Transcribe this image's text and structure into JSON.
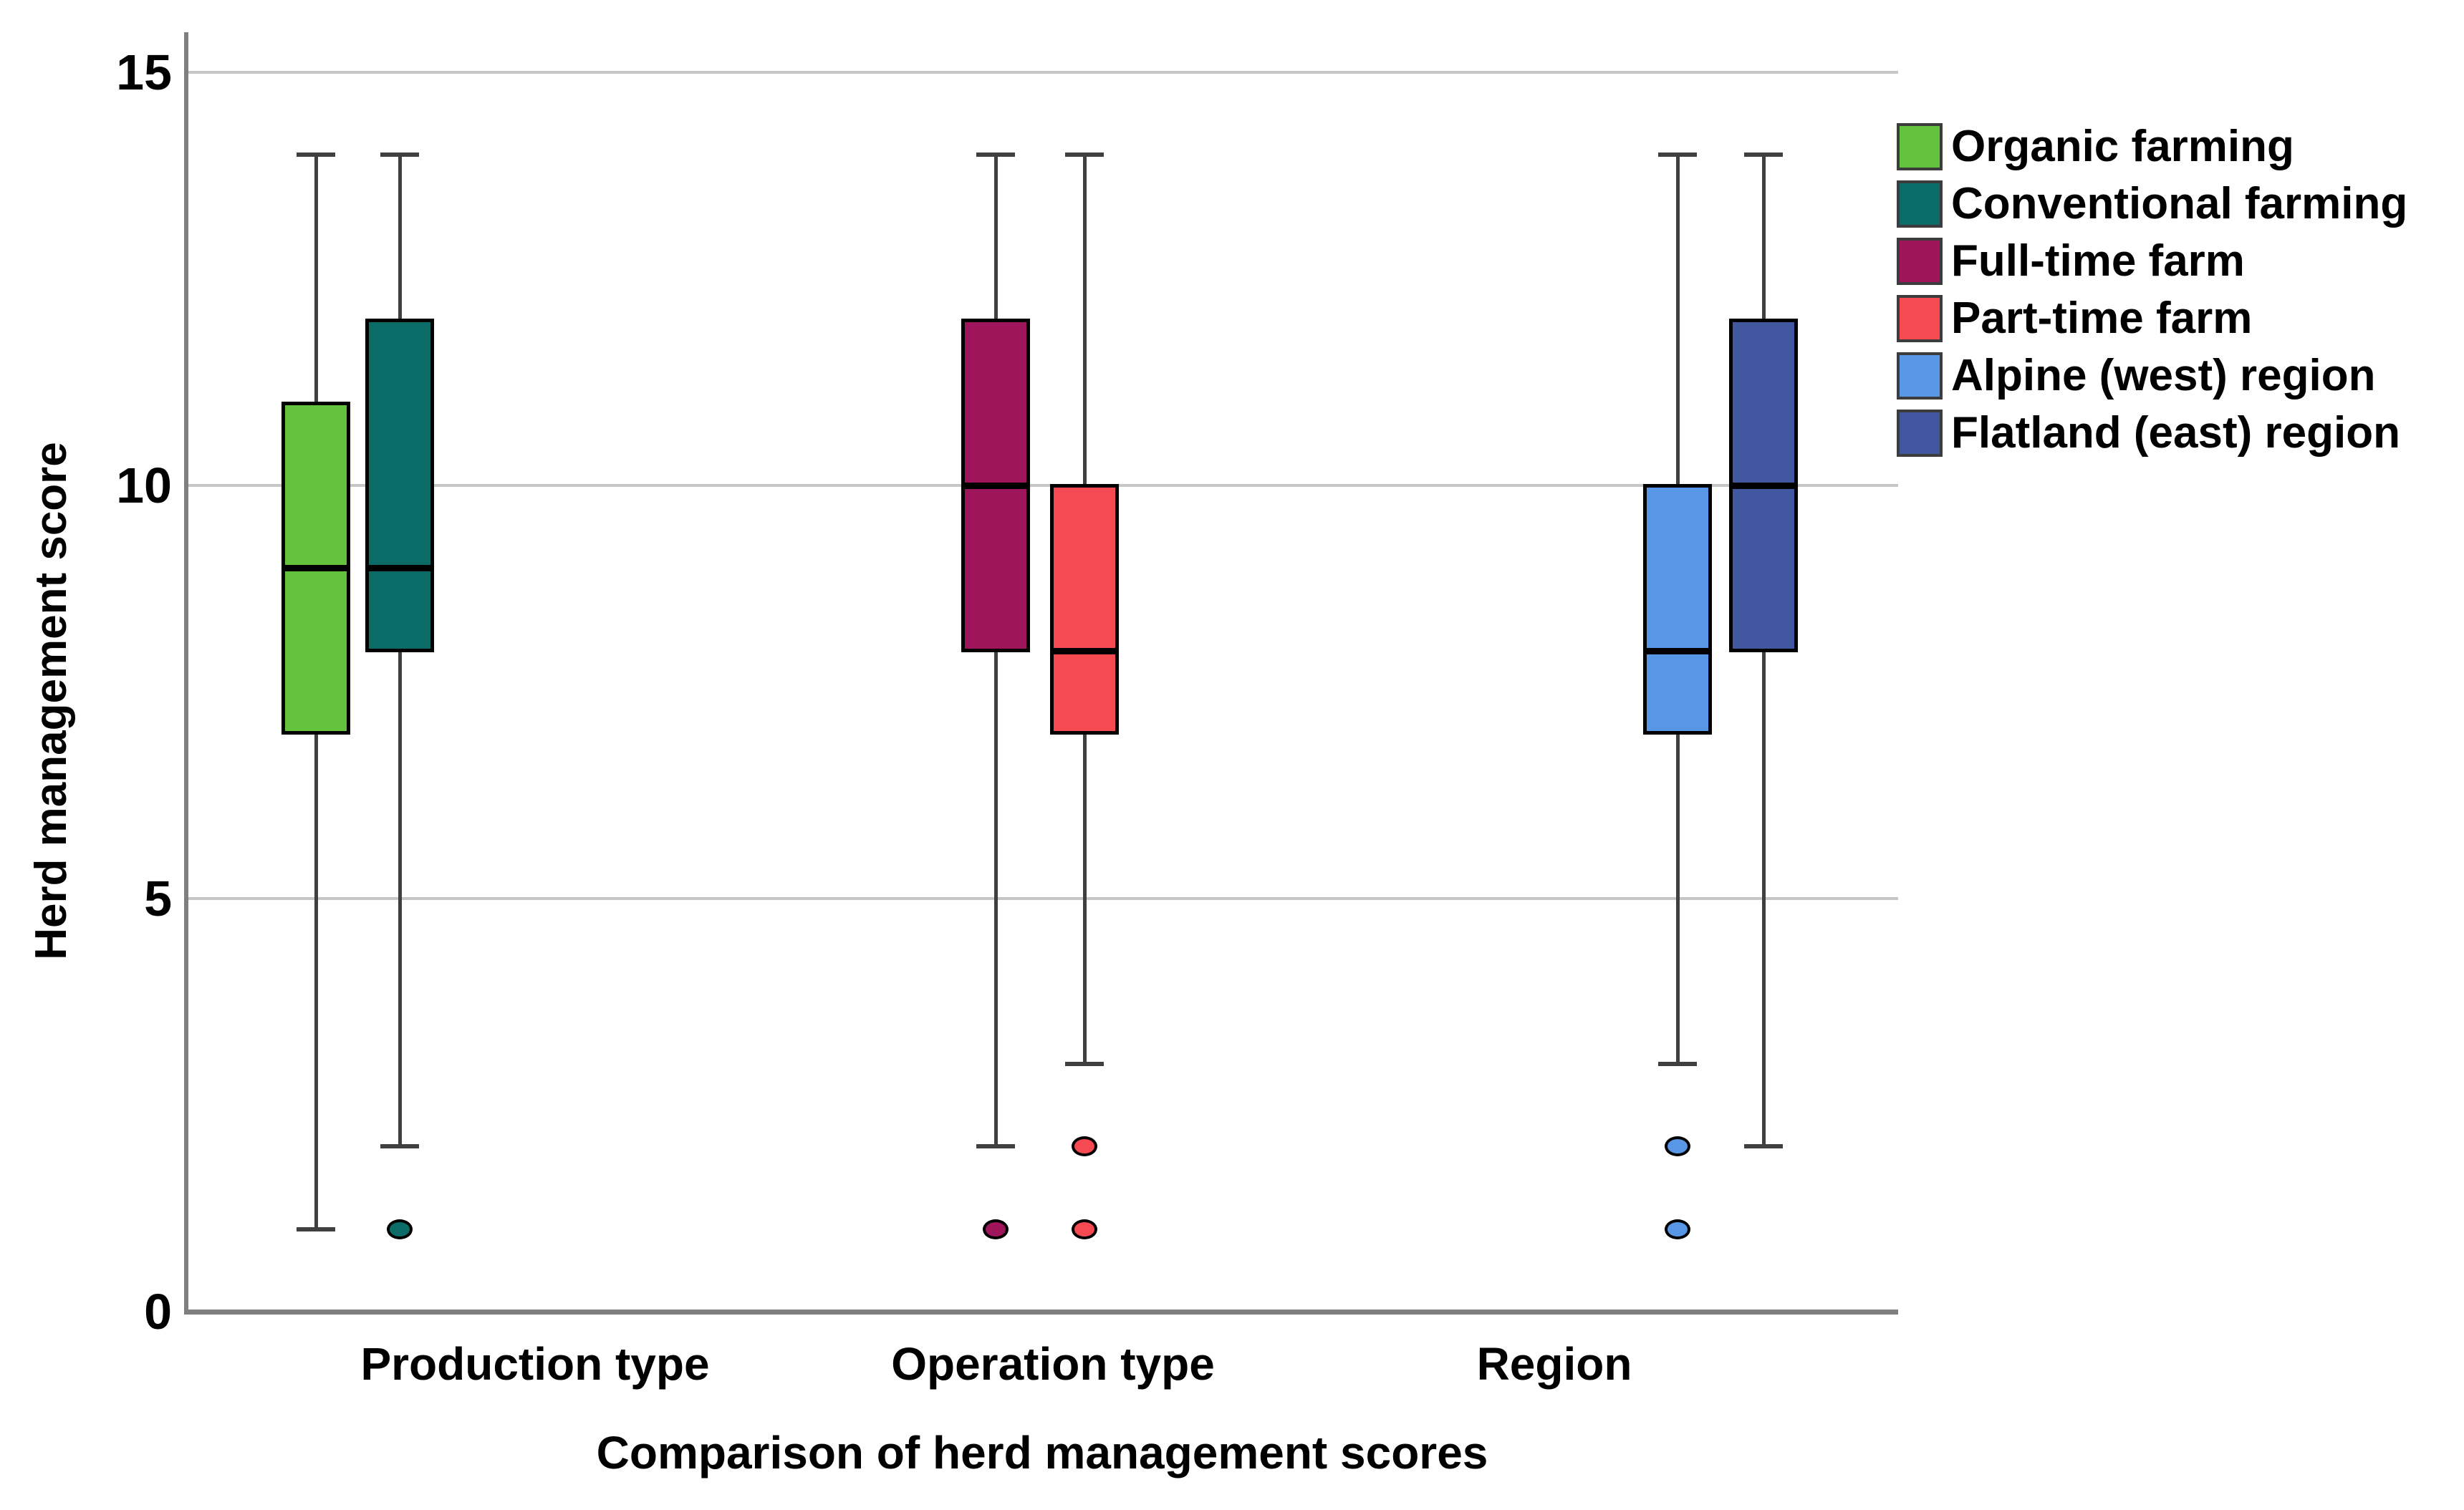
{
  "chart_data": {
    "type": "boxplot",
    "title": "Comparison of herd management scores",
    "xlabel": "Comparison of herd management scores",
    "ylabel": "Herd management score",
    "ylim": [
      0,
      15.5
    ],
    "yticks": [
      0,
      5,
      10,
      15
    ],
    "grid": true,
    "legend_position": "right",
    "categories": [
      "Production type",
      "Operation type",
      "Region"
    ],
    "series": [
      {
        "name": "Organic farming",
        "category": "Production type",
        "color": "#64c23c",
        "whisker_min": 1,
        "q1": 7,
        "median": 9,
        "q3": 11,
        "whisker_max": 14,
        "outliers": []
      },
      {
        "name": "Conventional farming",
        "category": "Production type",
        "color": "#0b6b66",
        "whisker_min": 2,
        "q1": 8,
        "median": 9,
        "q3": 12,
        "whisker_max": 14,
        "outliers": [
          1
        ]
      },
      {
        "name": "Full-time farm",
        "category": "Operation type",
        "color": "#9e155c",
        "whisker_min": 2,
        "q1": 8,
        "median": 10,
        "q3": 12,
        "whisker_max": 14,
        "outliers": [
          1
        ]
      },
      {
        "name": "Part-time farm",
        "category": "Operation type",
        "color": "#f64a52",
        "whisker_min": 3,
        "q1": 7,
        "median": 8,
        "q3": 10,
        "whisker_max": 14,
        "outliers": [
          2,
          1
        ]
      },
      {
        "name": "Alpine (west) region",
        "category": "Region",
        "color": "#5896e6",
        "whisker_min": 3,
        "q1": 7,
        "median": 8,
        "q3": 10,
        "whisker_max": 14,
        "outliers": [
          2,
          1
        ]
      },
      {
        "name": "Flatland (east) region",
        "category": "Region",
        "color": "#41579f",
        "whisker_min": 2,
        "q1": 8,
        "median": 10,
        "q3": 12,
        "whisker_max": 14,
        "outliers": []
      }
    ],
    "colors": {
      "axis": "#7f7f7f",
      "grid": "#c6c6c6",
      "whisker": "#3f3f3f",
      "box_border": "#000000",
      "text": "#000000",
      "background": "#ffffff"
    }
  }
}
